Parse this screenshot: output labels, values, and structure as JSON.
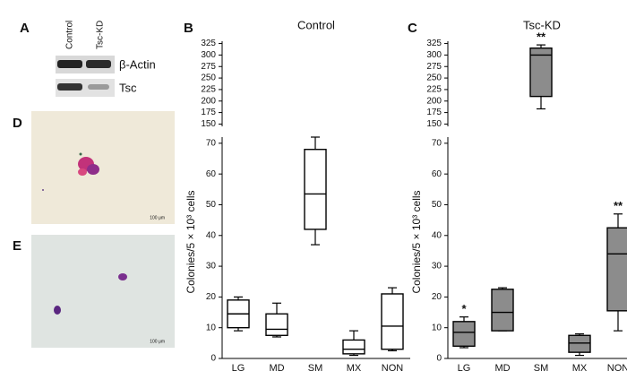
{
  "figure": {
    "panel_labels": [
      "A",
      "D",
      "E"
    ],
    "blot": {
      "lanes": [
        "Control",
        "Tsc-KD"
      ],
      "bands": [
        "β-Actin",
        "Tsc"
      ]
    },
    "scale_bars": [
      "100 μm",
      "100 μm"
    ]
  },
  "chart_data": [
    {
      "type": "box",
      "panel_label": "B",
      "title": "Control",
      "y_label": "Colonies/5 × 10³ cells",
      "categories": [
        "LG",
        "MD",
        "SM",
        "MX",
        "NON"
      ],
      "series": [
        {
          "color": "#ffffff",
          "min": [
            9,
            7,
            37,
            1,
            2.5
          ],
          "q1": [
            10,
            7.5,
            42,
            1.5,
            3
          ],
          "median": [
            14.5,
            9.5,
            53.5,
            3,
            10.5
          ],
          "q3": [
            19,
            14.5,
            68,
            6,
            21
          ],
          "max": [
            20,
            18,
            72,
            9,
            23
          ]
        }
      ],
      "ylim": [
        0,
        72
      ],
      "yticks": [
        0,
        10,
        20,
        30,
        40,
        50,
        60,
        70
      ],
      "ylim_upper": [
        145,
        330
      ],
      "yticks_upper": [
        150,
        175,
        200,
        225,
        250,
        275,
        300,
        325
      ]
    },
    {
      "type": "box",
      "panel_label": "C",
      "title": "Tsc-KD",
      "y_label": "Colonies/5 × 10³ cells",
      "categories": [
        "LG",
        "MD",
        "SM",
        "MX",
        "NON"
      ],
      "series": [
        {
          "color": "#8c8c8c",
          "min": [
            3.5,
            9,
            183,
            1,
            9
          ],
          "q1": [
            4,
            9,
            210,
            2,
            15.5
          ],
          "median": [
            8.5,
            15,
            300,
            5,
            34
          ],
          "q3": [
            12,
            22.5,
            315,
            7.5,
            42.5
          ],
          "max": [
            13.5,
            23,
            322,
            8,
            47
          ],
          "annotations": [
            "*",
            null,
            "**",
            null,
            "**"
          ]
        }
      ],
      "ylim": [
        0,
        72
      ],
      "yticks": [
        0,
        10,
        20,
        30,
        40,
        50,
        60,
        70
      ],
      "ylim_upper": [
        145,
        330
      ],
      "yticks_upper": [
        150,
        175,
        200,
        225,
        250,
        275,
        300,
        325
      ]
    }
  ]
}
